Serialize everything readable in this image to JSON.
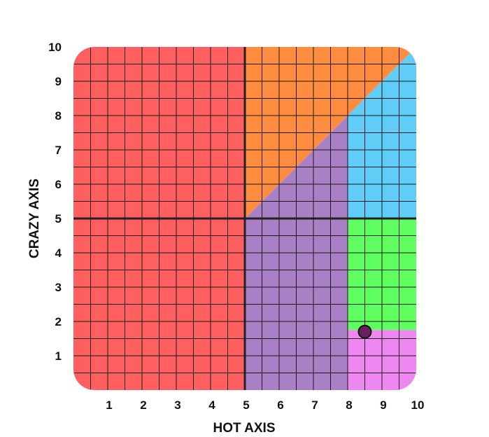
{
  "chart_data": {
    "type": "scatter",
    "title": "",
    "xlabel": "HOT AXIS",
    "ylabel": "CRAZY AXIS",
    "xlim": [
      0,
      10
    ],
    "ylim": [
      0,
      10
    ],
    "x_ticks": [
      "1",
      "2",
      "3",
      "4",
      "5",
      "6",
      "7",
      "8",
      "9",
      "10"
    ],
    "y_ticks": [
      "1",
      "2",
      "3",
      "4",
      "5",
      "6",
      "7",
      "8",
      "9",
      "10"
    ],
    "grid": true,
    "minor_grid_step": 0.5,
    "center_lines": {
      "x": 5,
      "y": 5,
      "color": "#222222"
    },
    "regions": [
      {
        "color": "#ff5f5f",
        "polygon": [
          [
            0,
            0
          ],
          [
            5,
            0
          ],
          [
            5,
            10
          ],
          [
            0,
            10
          ]
        ]
      },
      {
        "color": "#ff8c3f",
        "polygon": [
          [
            5,
            5
          ],
          [
            5,
            10
          ],
          [
            10,
            10
          ]
        ]
      },
      {
        "color": "#a97fc6",
        "polygon": [
          [
            5,
            0
          ],
          [
            8,
            0
          ],
          [
            8,
            8
          ],
          [
            5,
            5
          ]
        ]
      },
      {
        "color": "#5fcdf7",
        "polygon": [
          [
            8,
            5
          ],
          [
            10,
            5
          ],
          [
            10,
            10
          ],
          [
            8,
            8
          ]
        ]
      },
      {
        "color": "#5fff5f",
        "polygon": [
          [
            8,
            1.75
          ],
          [
            10,
            1.75
          ],
          [
            10,
            5
          ],
          [
            8,
            5
          ]
        ]
      },
      {
        "color": "#ef87f0",
        "polygon": [
          [
            8,
            0
          ],
          [
            10,
            0
          ],
          [
            10,
            1.75
          ],
          [
            8,
            1.75
          ]
        ]
      }
    ],
    "points": [
      {
        "x": 8.5,
        "y": 1.7,
        "color": "#6a1f5f"
      }
    ]
  }
}
